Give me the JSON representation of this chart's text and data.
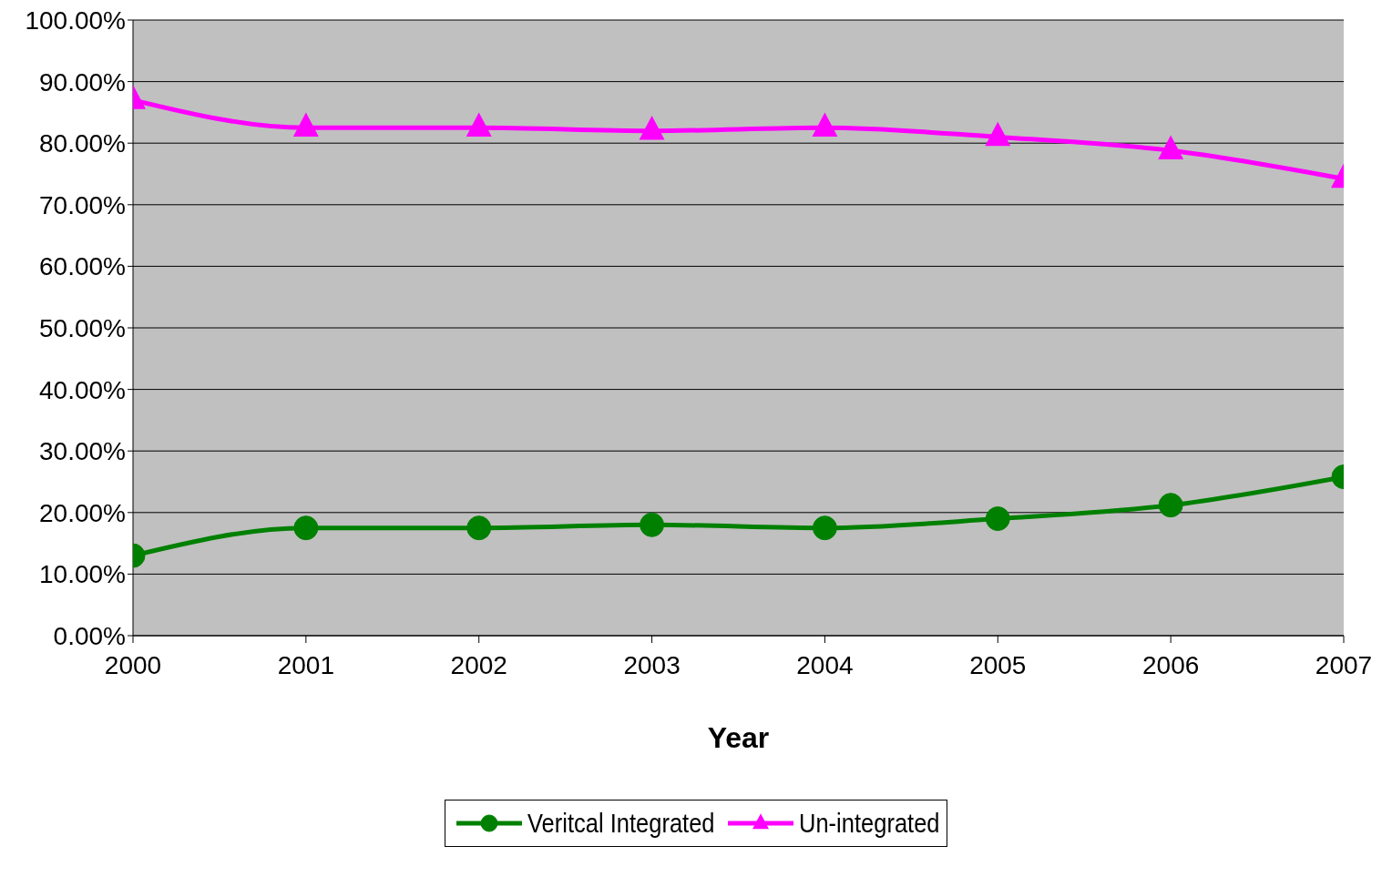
{
  "chart_data": {
    "type": "line",
    "xlabel": "Year",
    "x": [
      2000,
      2001,
      2002,
      2003,
      2004,
      2005,
      2006,
      2007
    ],
    "series": [
      {
        "name": "Veritcal Integrated",
        "color": "#008000",
        "marker": "circle",
        "values": [
          13.0,
          17.5,
          17.5,
          18.0,
          17.5,
          19.0,
          21.2,
          25.8
        ]
      },
      {
        "name": "Un-integrated",
        "color": "#ff00ff",
        "marker": "triangle",
        "values": [
          87.0,
          82.5,
          82.5,
          82.0,
          82.5,
          81.0,
          78.8,
          74.2
        ]
      }
    ],
    "xlim": [
      2000,
      2007
    ],
    "xticks": [
      2000,
      2001,
      2002,
      2003,
      2004,
      2005,
      2006,
      2007
    ],
    "ylim": [
      0,
      100
    ],
    "yticks": [
      {
        "value": 0,
        "label": "0.00%"
      },
      {
        "value": 10,
        "label": "10.00%"
      },
      {
        "value": 20,
        "label": "20.00%"
      },
      {
        "value": 30,
        "label": "30.00%"
      },
      {
        "value": 40,
        "label": "40.00%"
      },
      {
        "value": 50,
        "label": "50.00%"
      },
      {
        "value": 60,
        "label": "60.00%"
      },
      {
        "value": 70,
        "label": "70.00%"
      },
      {
        "value": 80,
        "label": "80.00%"
      },
      {
        "value": 90,
        "label": "90.00%"
      },
      {
        "value": 100,
        "label": "100.00%"
      }
    ],
    "grid": "y",
    "legend": "bottom",
    "line_style": "solid"
  }
}
